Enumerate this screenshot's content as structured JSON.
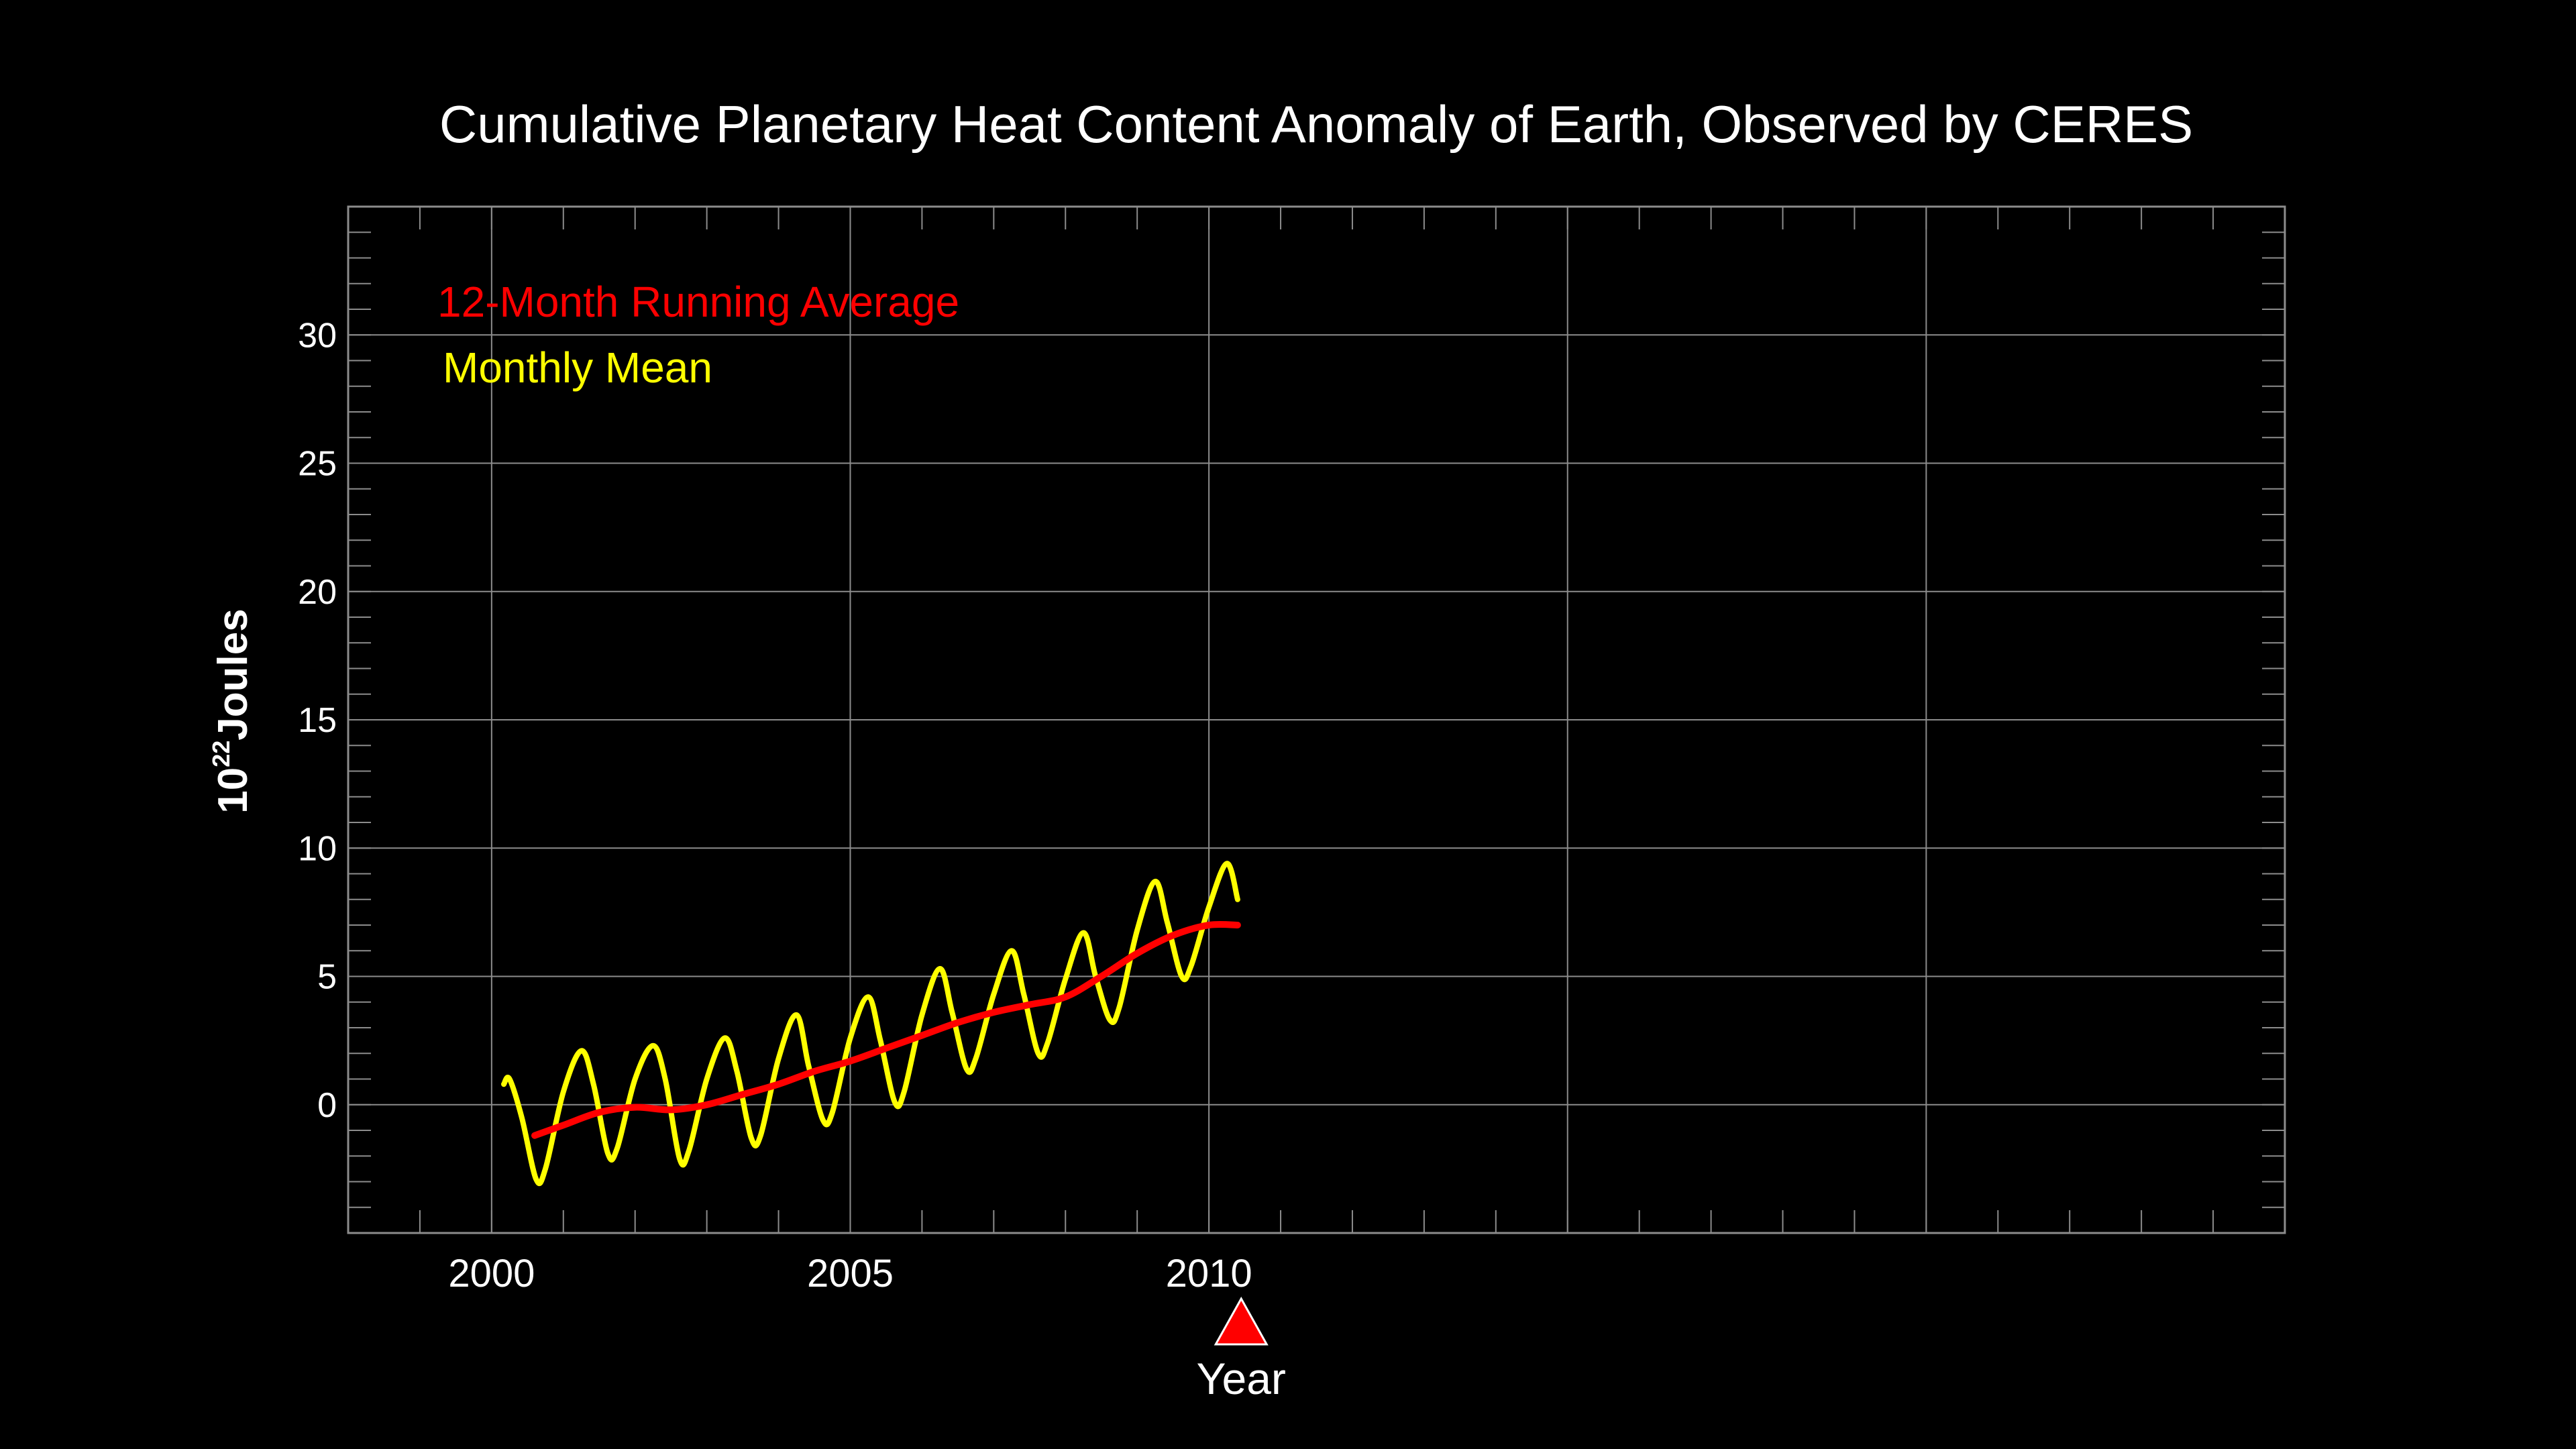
{
  "colors": {
    "background": "#000000",
    "text": "#ffffff",
    "grid": "#8c8c8c",
    "running_average": "#ff0000",
    "monthly_mean": "#ffff00",
    "marker": "#ff0000"
  },
  "chart_data": {
    "type": "line",
    "title": "Cumulative Planetary Heat Content Anomaly of Earth, Observed by CERES",
    "xlabel": "Year",
    "ylabel": {
      "base": "10",
      "exponent": "22",
      "unit": "Joules"
    },
    "xlim": [
      1998,
      2025
    ],
    "ylim": [
      -5,
      35
    ],
    "x_ticks": [
      2000,
      2005,
      2010
    ],
    "x_gridlines": [
      2000,
      2005,
      2010,
      2015,
      2020
    ],
    "y_ticks": [
      0,
      5,
      10,
      15,
      20,
      25,
      30
    ],
    "grid": true,
    "legend_position": "top-left",
    "current_marker_year": 2010.45,
    "series": [
      {
        "name": "12-Month Running Average",
        "color": "#ff0000",
        "x": [
          2000.6,
          2001.0,
          2001.5,
          2002.0,
          2002.5,
          2003.0,
          2003.5,
          2004.0,
          2004.5,
          2005.0,
          2005.5,
          2006.0,
          2006.5,
          2007.0,
          2007.5,
          2008.0,
          2008.5,
          2009.0,
          2009.5,
          2010.0,
          2010.4
        ],
        "values": [
          -1.2,
          -0.8,
          -0.3,
          -0.1,
          -0.2,
          0.0,
          0.4,
          0.8,
          1.3,
          1.7,
          2.2,
          2.7,
          3.2,
          3.6,
          3.9,
          4.2,
          5.0,
          5.9,
          6.6,
          7.0,
          7.0
        ]
      },
      {
        "name": "Monthly Mean",
        "color": "#ffff00",
        "x": [
          2000.17,
          2000.25,
          2000.42,
          2000.62,
          2000.75,
          2001.0,
          2001.25,
          2001.42,
          2001.62,
          2001.75,
          2002.0,
          2002.25,
          2002.42,
          2002.62,
          2002.75,
          2003.0,
          2003.25,
          2003.42,
          2003.62,
          2003.75,
          2004.0,
          2004.25,
          2004.42,
          2004.62,
          2004.75,
          2005.0,
          2005.25,
          2005.42,
          2005.62,
          2005.75,
          2006.0,
          2006.25,
          2006.42,
          2006.62,
          2006.75,
          2007.0,
          2007.25,
          2007.42,
          2007.62,
          2007.75,
          2008.0,
          2008.25,
          2008.42,
          2008.62,
          2008.75,
          2009.0,
          2009.25,
          2009.42,
          2009.62,
          2009.75,
          2010.0,
          2010.25,
          2010.4
        ],
        "values": [
          0.8,
          1.0,
          -0.5,
          -2.9,
          -2.5,
          0.5,
          2.1,
          0.8,
          -1.9,
          -1.7,
          1.0,
          2.3,
          1.0,
          -2.1,
          -1.8,
          1.0,
          2.6,
          1.3,
          -1.3,
          -1.2,
          1.8,
          3.5,
          1.5,
          -0.6,
          -0.3,
          2.6,
          4.2,
          2.5,
          0.1,
          0.5,
          3.5,
          5.3,
          3.6,
          1.4,
          1.8,
          4.3,
          6.0,
          4.3,
          2.0,
          2.4,
          4.9,
          6.7,
          5.0,
          3.3,
          3.8,
          6.8,
          8.7,
          7.1,
          5.0,
          5.4,
          7.7,
          9.4,
          8.0
        ]
      }
    ]
  }
}
